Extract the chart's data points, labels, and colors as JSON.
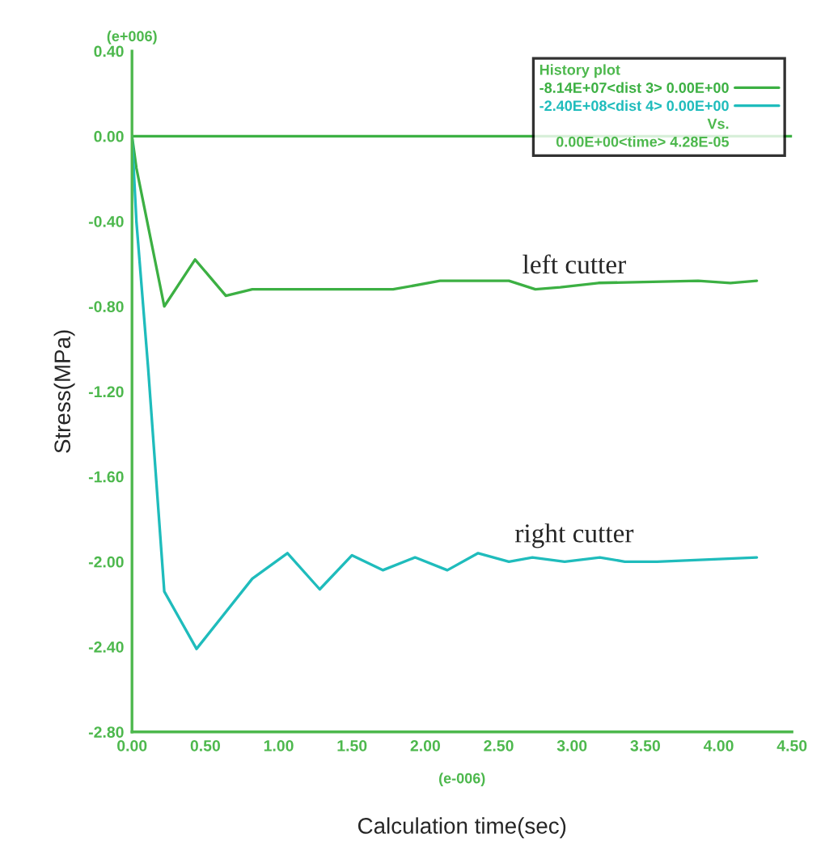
{
  "chart_data": {
    "type": "line",
    "xlabel": "Calculation time(sec)",
    "ylabel": "Stress(MPa)",
    "legend_title": "History plot",
    "xlim": [
      0,
      4.5
    ],
    "ylim": [
      -2.8,
      0.4
    ],
    "xticks": [
      {
        "value": 0,
        "label": "0.00"
      },
      {
        "value": 0.5,
        "label": "0.50"
      },
      {
        "value": 1,
        "label": "1.00"
      },
      {
        "value": 1.5,
        "label": "1.50"
      },
      {
        "value": 2,
        "label": "2.00"
      },
      {
        "value": 2.5,
        "label": "2.50"
      },
      {
        "value": 3,
        "label": "3.00"
      },
      {
        "value": 3.5,
        "label": "3.50"
      },
      {
        "value": 4,
        "label": "4.00"
      },
      {
        "value": 4.5,
        "label": "4.50"
      }
    ],
    "yticks": [
      {
        "value": 0.4,
        "label": "0.40"
      },
      {
        "value": 0,
        "label": "0.00"
      },
      {
        "value": -0.4,
        "label": "-0.40"
      },
      {
        "value": -0.8,
        "label": "-0.80"
      },
      {
        "value": -1.2,
        "label": "-1.20"
      },
      {
        "value": -1.6,
        "label": "-1.60"
      },
      {
        "value": -2.0,
        "label": "-2.00"
      },
      {
        "value": -2.4,
        "label": "-2.40"
      },
      {
        "value": -2.8,
        "label": "-2.80"
      }
    ],
    "grid": false,
    "legend": "top right",
    "marker": "none",
    "line_style": "solid",
    "ref_lines": [
      {
        "axis": "y",
        "value": 0,
        "color": "#3cb043"
      }
    ],
    "series": [
      {
        "name": "-8.14E+07<dist 3> 0.00E+00",
        "color": "#3cb043",
        "x": [
          0,
          0.03,
          0.22,
          0.43,
          0.64,
          0.82,
          1.78,
          2.1,
          2.57,
          2.75,
          2.92,
          3.18,
          3.86,
          4.08,
          4.26
        ],
        "values": [
          0,
          -0.15,
          -0.8,
          -0.58,
          -0.75,
          -0.72,
          -0.72,
          -0.68,
          -0.68,
          -0.72,
          -0.71,
          -0.69,
          -0.68,
          -0.69,
          -0.68
        ]
      },
      {
        "name": "-2.40E+08<dist 4> 0.00E+00",
        "color": "#1fbcbc",
        "x": [
          0,
          0.03,
          0.11,
          0.22,
          0.44,
          0.82,
          1.06,
          1.28,
          1.5,
          1.71,
          1.93,
          2.15,
          2.36,
          2.57,
          2.73,
          2.95,
          3.19,
          3.36,
          3.58,
          4.26
        ],
        "values": [
          0,
          -0.4,
          -1.09,
          -2.14,
          -2.41,
          -2.08,
          -1.96,
          -2.13,
          -1.97,
          -2.04,
          -1.98,
          -2.04,
          -1.96,
          -2.0,
          -1.98,
          -2.0,
          -1.98,
          -2.0,
          -2.0,
          -1.98
        ]
      }
    ],
    "annotations": [
      "Vs.",
      "0.00E+00<time> 4.28E-05",
      "(e+006)",
      "(e-006)",
      "left cutter",
      "right cutter"
    ]
  }
}
